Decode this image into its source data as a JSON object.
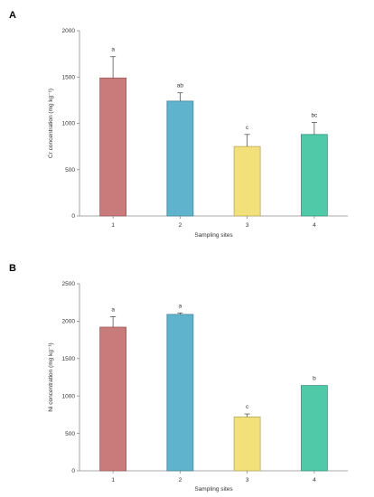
{
  "chart_data": [
    {
      "type": "bar",
      "panel": "A",
      "xlabel": "Sampling sites",
      "ylabel": "Cr concentration (mg kg⁻¹)",
      "categories": [
        "1",
        "2",
        "3",
        "4"
      ],
      "values": [
        1490,
        1240,
        750,
        880
      ],
      "errors": [
        230,
        90,
        130,
        130
      ],
      "letters": [
        "a",
        "ab",
        "c",
        "bc"
      ],
      "colors": [
        "#c97b7b",
        "#5fb3cc",
        "#f2e07a",
        "#4fc9a8"
      ],
      "ylim": [
        0,
        2000
      ],
      "yticks": [
        "0",
        "500",
        "1000",
        "1500",
        "2000"
      ],
      "grid": false
    },
    {
      "type": "bar",
      "panel": "B",
      "xlabel": "Sampling sites",
      "ylabel": "Ni concentration (mg kg⁻¹)",
      "categories": [
        "1",
        "2",
        "3",
        "4"
      ],
      "values": [
        1920,
        2090,
        720,
        1140
      ],
      "errors": [
        140,
        20,
        40,
        0
      ],
      "letters": [
        "a",
        "a",
        "c",
        "b"
      ],
      "colors": [
        "#c97b7b",
        "#5fb3cc",
        "#f2e07a",
        "#4fc9a8"
      ],
      "ylim": [
        0,
        2500
      ],
      "yticks": [
        "0",
        "500",
        "1000",
        "1500",
        "2000",
        "2500"
      ],
      "grid": false
    }
  ]
}
